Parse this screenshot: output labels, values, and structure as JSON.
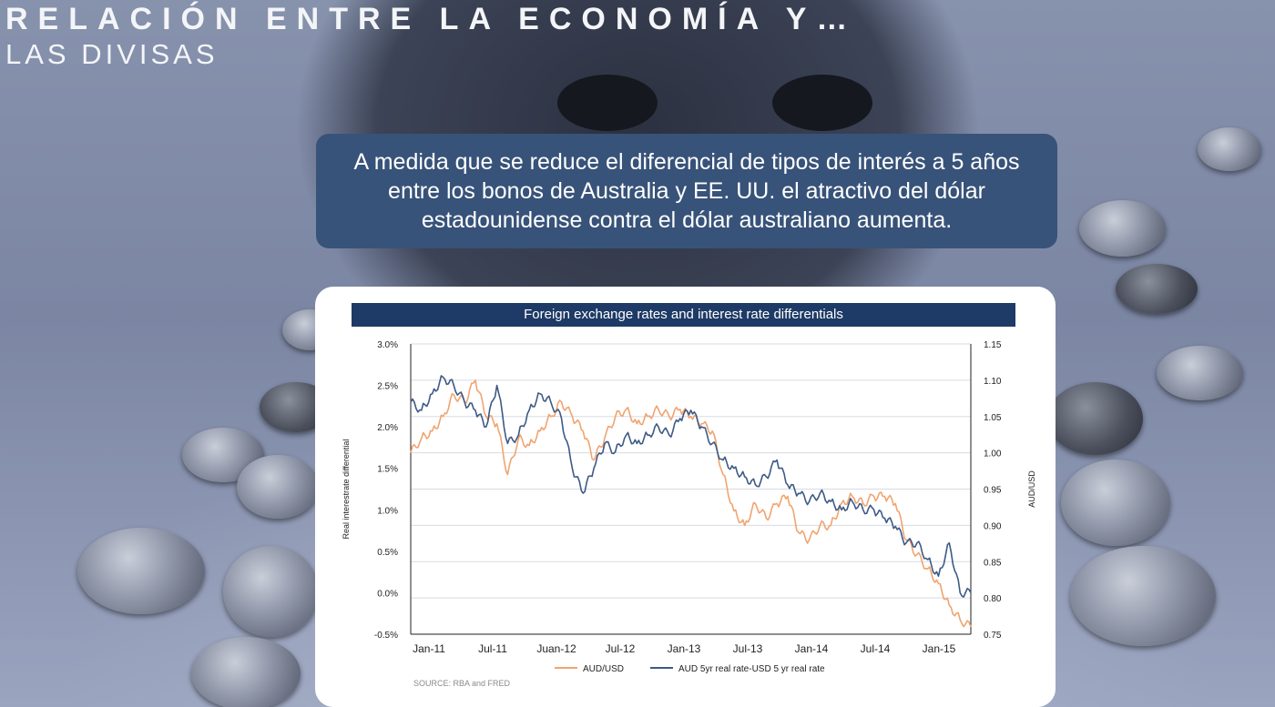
{
  "slide": {
    "title_line1": "RELACIÓN ENTRE LA ECONOMÍA Y…",
    "title_line2": "LAS DIVISAS",
    "callout_text": "A medida que se reduce el diferencial de tipos de interés a 5 años entre los bonos de Australia y EE. UU. el atractivo del dólar estadounidense contra el dólar australiano aumenta.",
    "source": "SOURCE: RBA and FRED"
  },
  "colors": {
    "callout_bg": "#385379",
    "chart_title_bg": "#1e3a66",
    "aud_usd": "#f0a470",
    "rate_diff": "#3d5a86"
  },
  "chart_data": {
    "type": "line",
    "title": "Foreign exchange rates and interest rate differentials",
    "ylabel": "Real interestrate differential",
    "y2label": "AUD/USD",
    "ylim": [
      -0.5,
      3.0
    ],
    "y2lim": [
      0.75,
      1.15
    ],
    "yticks": [
      "3.0%",
      "2.5%",
      "2.0%",
      "1.5%",
      "1.0%",
      "0.5%",
      "0.0%",
      "-0.5%"
    ],
    "y2ticks": [
      "1.15",
      "1.10",
      "1.05",
      "1.00",
      "0.95",
      "0.90",
      "0.85",
      "0.80",
      "0.75"
    ],
    "xticks": [
      "Jan-11",
      "Jul-11",
      "Juan-12",
      "Jul-12",
      "Jan-13",
      "Jul-13",
      "Jan-14",
      "Jul-14",
      "Jan-15"
    ],
    "grid": "horizontal",
    "legend_position": "bottom",
    "x_range_months": [
      0,
      52
    ],
    "series": [
      {
        "name": "AUD/USD",
        "axis": "right",
        "x": [
          0,
          1,
          2,
          3,
          4,
          5,
          6,
          7,
          8,
          9,
          10,
          11,
          12,
          13,
          14,
          15,
          16,
          17,
          18,
          19,
          20,
          21,
          22,
          23,
          24,
          25,
          26,
          27,
          28,
          29,
          30,
          31,
          32,
          33,
          34,
          35,
          36,
          37,
          38,
          39,
          40,
          41,
          42,
          43,
          44,
          45,
          46,
          47,
          48,
          49,
          50,
          51,
          52
        ],
        "values": [
          1.0,
          1.02,
          1.03,
          1.05,
          1.08,
          1.07,
          1.1,
          1.05,
          1.04,
          0.97,
          1.02,
          1.01,
          1.03,
          1.05,
          1.07,
          1.05,
          1.03,
          0.99,
          1.02,
          1.05,
          1.06,
          1.04,
          1.05,
          1.06,
          1.05,
          1.06,
          1.05,
          1.04,
          1.03,
          0.97,
          0.92,
          0.9,
          0.93,
          0.91,
          0.93,
          0.94,
          0.89,
          0.88,
          0.9,
          0.9,
          0.93,
          0.94,
          0.93,
          0.94,
          0.94,
          0.93,
          0.88,
          0.86,
          0.84,
          0.82,
          0.79,
          0.77,
          0.76
        ]
      },
      {
        "name": "AUD 5yr real rate-USD 5 yr real rate",
        "axis": "left",
        "x": [
          0,
          1,
          2,
          3,
          4,
          5,
          6,
          7,
          8,
          9,
          10,
          11,
          12,
          13,
          14,
          15,
          16,
          17,
          18,
          19,
          20,
          21,
          22,
          23,
          24,
          25,
          26,
          27,
          28,
          29,
          30,
          31,
          32,
          33,
          34,
          35,
          36,
          37,
          38,
          39,
          40,
          41,
          42,
          43,
          44,
          45,
          46,
          47,
          48,
          49,
          50,
          51,
          52
        ],
        "values": [
          2.3,
          2.2,
          2.4,
          2.6,
          2.5,
          2.3,
          2.2,
          2.0,
          2.5,
          1.8,
          1.9,
          2.2,
          2.4,
          2.3,
          2.1,
          1.5,
          1.2,
          1.5,
          1.8,
          1.7,
          1.9,
          1.8,
          1.9,
          2.0,
          1.9,
          2.1,
          2.2,
          2.0,
          1.8,
          1.6,
          1.5,
          1.4,
          1.3,
          1.4,
          1.6,
          1.3,
          1.2,
          1.1,
          1.2,
          1.1,
          1.0,
          1.1,
          1.0,
          1.0,
          0.9,
          0.8,
          0.6,
          0.6,
          0.4,
          0.2,
          0.6,
          0.0,
          0.0
        ]
      }
    ]
  }
}
